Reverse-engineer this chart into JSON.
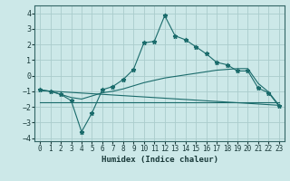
{
  "xlabel": "Humidex (Indice chaleur)",
  "xlim": [
    -0.5,
    23.5
  ],
  "ylim": [
    -4.2,
    4.5
  ],
  "xticks": [
    0,
    1,
    2,
    3,
    4,
    5,
    6,
    7,
    8,
    9,
    10,
    11,
    12,
    13,
    14,
    15,
    16,
    17,
    18,
    19,
    20,
    21,
    22,
    23
  ],
  "yticks": [
    -4,
    -3,
    -2,
    -1,
    0,
    1,
    2,
    3,
    4
  ],
  "bg_color": "#cce8e8",
  "grid_color": "#aacccc",
  "line_color": "#1a6b6b",
  "line1_x": [
    0,
    1,
    2,
    3,
    4,
    5,
    6,
    7,
    8,
    9,
    10,
    11,
    12,
    13,
    14,
    15,
    16,
    17,
    18,
    19,
    20,
    21,
    22,
    23
  ],
  "line1_y": [
    -0.9,
    -1.0,
    -1.2,
    -1.6,
    -3.6,
    -2.4,
    -0.9,
    -0.7,
    -0.25,
    0.4,
    2.1,
    2.2,
    3.85,
    2.55,
    2.3,
    1.85,
    1.4,
    0.85,
    0.7,
    0.3,
    0.3,
    -0.8,
    -1.1,
    -1.95
  ],
  "line2_x": [
    0,
    1,
    2,
    3,
    4,
    5,
    6,
    7,
    8,
    9,
    10,
    11,
    12,
    13,
    14,
    15,
    16,
    17,
    18,
    19,
    20,
    21,
    22,
    23
  ],
  "line2_y": [
    -0.95,
    -1.0,
    -1.2,
    -1.4,
    -1.5,
    -1.3,
    -1.1,
    -1.0,
    -0.85,
    -0.65,
    -0.45,
    -0.3,
    -0.15,
    -0.05,
    0.05,
    0.15,
    0.25,
    0.35,
    0.4,
    0.45,
    0.45,
    -0.5,
    -1.05,
    -1.9
  ],
  "line3_x": [
    0,
    23
  ],
  "line3_y": [
    -0.95,
    -1.9
  ],
  "line4_x": [
    0,
    23
  ],
  "line4_y": [
    -1.7,
    -1.7
  ]
}
